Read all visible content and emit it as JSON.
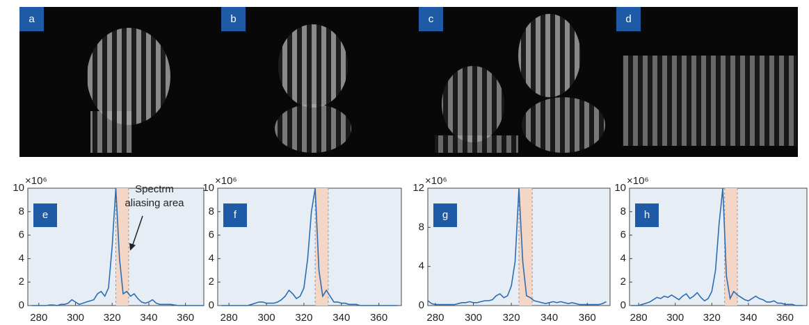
{
  "photos": [
    {
      "label": "a"
    },
    {
      "label": "b"
    },
    {
      "label": "c"
    },
    {
      "label": "d"
    }
  ],
  "chart_data": [
    {
      "type": "line",
      "panel_label": "e",
      "y_multiplier": "×10⁶",
      "annotation": [
        "Spectrm",
        "aliasing area"
      ],
      "highlight_range": [
        322,
        329
      ],
      "xlim": [
        274,
        370
      ],
      "xticks": [
        280,
        300,
        320,
        340,
        360
      ],
      "ylim": [
        0,
        10
      ],
      "yticks": [
        0,
        2,
        4,
        6,
        8,
        10
      ],
      "x": [
        276,
        278,
        280,
        282,
        284,
        286,
        288,
        290,
        292,
        294,
        296,
        298,
        300,
        302,
        304,
        306,
        308,
        310,
        312,
        314,
        316,
        318,
        320,
        322,
        324,
        326,
        328,
        330,
        332,
        334,
        336,
        338,
        340,
        342,
        344,
        346,
        348,
        350,
        352,
        354,
        356,
        358,
        360,
        362,
        364,
        366,
        368,
        370
      ],
      "series": [
        {
          "color": "#2a6db5",
          "values": [
            0,
            0,
            0,
            0,
            0,
            0.05,
            0.05,
            0,
            0.1,
            0.1,
            0.2,
            0.5,
            0.3,
            0.1,
            0.2,
            0.3,
            0.4,
            0.5,
            1.0,
            1.2,
            0.8,
            1.5,
            5.0,
            10,
            4,
            1.0,
            1.2,
            0.8,
            1.0,
            0.6,
            0.3,
            0.2,
            0.3,
            0.5,
            0.2,
            0.1,
            0.1,
            0.1,
            0.1,
            0.05,
            0,
            0,
            0,
            0,
            0,
            0,
            0,
            0
          ]
        }
      ]
    },
    {
      "type": "line",
      "panel_label": "f",
      "y_multiplier": "×10⁶",
      "highlight_range": [
        326,
        333
      ],
      "xlim": [
        274,
        372
      ],
      "xticks": [
        280,
        300,
        320,
        340,
        360
      ],
      "ylim": [
        0,
        10
      ],
      "yticks": [
        0,
        2,
        4,
        6,
        8,
        10
      ],
      "x": [
        276,
        278,
        280,
        282,
        284,
        286,
        288,
        290,
        292,
        294,
        296,
        298,
        300,
        302,
        304,
        306,
        308,
        310,
        312,
        314,
        316,
        318,
        320,
        322,
        324,
        326,
        328,
        330,
        332,
        334,
        336,
        338,
        340,
        342,
        344,
        346,
        348,
        350,
        352,
        354,
        356,
        358,
        360,
        362,
        364,
        366,
        368,
        370
      ],
      "series": [
        {
          "color": "#2a6db5",
          "values": [
            0,
            0,
            0,
            0,
            0,
            0,
            0,
            0,
            0.1,
            0.2,
            0.3,
            0.3,
            0.2,
            0.2,
            0.2,
            0.3,
            0.5,
            0.8,
            1.3,
            1.0,
            0.6,
            0.8,
            1.5,
            4,
            8,
            10,
            3,
            0.8,
            1.3,
            0.8,
            0.3,
            0.3,
            0.2,
            0.2,
            0.1,
            0.1,
            0.1,
            0,
            0,
            0,
            0,
            0,
            0,
            0,
            0,
            0,
            0,
            0
          ]
        }
      ]
    },
    {
      "type": "line",
      "panel_label": "g",
      "y_multiplier": "×10⁶",
      "highlight_range": [
        324,
        331
      ],
      "xlim": [
        276,
        372
      ],
      "xticks": [
        280,
        300,
        320,
        340,
        360
      ],
      "ylim": [
        0,
        12
      ],
      "yticks": [
        0,
        4,
        8,
        12
      ],
      "x": [
        276,
        278,
        280,
        282,
        284,
        286,
        288,
        290,
        292,
        294,
        296,
        298,
        300,
        302,
        304,
        306,
        308,
        310,
        312,
        314,
        316,
        318,
        320,
        322,
        324,
        326,
        328,
        330,
        332,
        334,
        336,
        338,
        340,
        342,
        344,
        346,
        348,
        350,
        352,
        354,
        356,
        358,
        360,
        362,
        364,
        366,
        368,
        370
      ],
      "series": [
        {
          "color": "#2a6db5",
          "values": [
            0.5,
            0.2,
            0.1,
            0.1,
            0.1,
            0.1,
            0.1,
            0.1,
            0.2,
            0.3,
            0.3,
            0.4,
            0.3,
            0.3,
            0.4,
            0.5,
            0.5,
            0.6,
            1.0,
            1.2,
            0.8,
            1.0,
            2.0,
            4.5,
            12,
            4.5,
            1.0,
            0.8,
            0.5,
            0.4,
            0.3,
            0.2,
            0.3,
            0.4,
            0.3,
            0.4,
            0.3,
            0.2,
            0.3,
            0.2,
            0.1,
            0.1,
            0.1,
            0.1,
            0.1,
            0.1,
            0.2,
            0.4
          ]
        }
      ]
    },
    {
      "type": "line",
      "panel_label": "h",
      "y_multiplier": "×10⁶",
      "highlight_range": [
        327,
        334
      ],
      "xlim": [
        275,
        372
      ],
      "xticks": [
        280,
        300,
        320,
        340,
        360
      ],
      "ylim": [
        0,
        10
      ],
      "yticks": [
        0,
        2,
        4,
        6,
        8,
        10
      ],
      "x": [
        276,
        278,
        280,
        282,
        284,
        286,
        288,
        290,
        292,
        294,
        296,
        298,
        300,
        302,
        304,
        306,
        308,
        310,
        312,
        314,
        316,
        318,
        320,
        322,
        324,
        326,
        328,
        330,
        332,
        334,
        336,
        338,
        340,
        342,
        344,
        346,
        348,
        350,
        352,
        354,
        356,
        358,
        360,
        362,
        364,
        366,
        368,
        370
      ],
      "series": [
        {
          "color": "#2a6db5",
          "values": [
            0,
            0,
            0,
            0.1,
            0.2,
            0.3,
            0.5,
            0.7,
            0.6,
            0.8,
            0.7,
            0.9,
            0.7,
            0.5,
            0.8,
            1.0,
            0.6,
            0.8,
            1.1,
            0.7,
            0.4,
            0.6,
            1.2,
            3,
            7,
            10,
            2.5,
            0.6,
            1.2,
            0.9,
            0.7,
            0.5,
            0.4,
            0.6,
            0.8,
            0.6,
            0.5,
            0.3,
            0.3,
            0.4,
            0.2,
            0.2,
            0.1,
            0.1,
            0.1,
            0,
            0,
            0
          ]
        }
      ]
    }
  ]
}
